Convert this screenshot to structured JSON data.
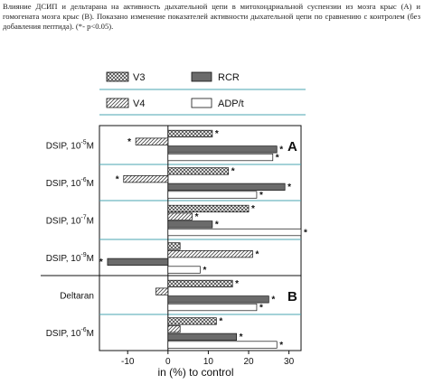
{
  "caption": {
    "text": "Влияние ДСИП и дельтарана на активность дыхательной цепи в митохондриальной суспензии из мозга крыс (А) и гомогената мозга крыс (В). Показано изменение показателей активности дыхательной цепи по сравнению с контролем (без добавления пептида).   (*- p<0.05)."
  },
  "chart_data": {
    "type": "bar",
    "orientation": "horizontal",
    "xlabel": "in (%) to control",
    "xlim": [
      -17,
      33
    ],
    "xticks": [
      -10,
      0,
      10,
      20,
      30
    ],
    "legend": {
      "placement": "top",
      "entries": [
        {
          "key": "V3",
          "label": "V3",
          "pattern": "crosshatch"
        },
        {
          "key": "RCR",
          "label": "RCR",
          "pattern": "solid-dark"
        },
        {
          "key": "V4",
          "label": "V4",
          "pattern": "diagonal"
        },
        {
          "key": "ADP_t",
          "label": "ADP/t",
          "pattern": "white"
        }
      ]
    },
    "series_order": [
      "V3",
      "V4",
      "RCR",
      "ADP_t"
    ],
    "colors": {
      "dark": "#6b6b6b",
      "hatch": "#555555",
      "teal_grid": "#4aa6b0",
      "frame": "#111111"
    },
    "panels": [
      {
        "label": "A",
        "groups": [
          {
            "name": "DSIP, 10",
            "sup": "-5",
            "unit": "M",
            "values": {
              "V3": 11,
              "V4": -8,
              "RCR": 27,
              "ADP_t": 26
            },
            "sig": {
              "V3": true,
              "V4": true,
              "RCR": true,
              "ADP_t": true
            }
          },
          {
            "name": "DSIP, 10",
            "sup": "-6",
            "unit": "M",
            "values": {
              "V3": 15,
              "V4": -11,
              "RCR": 29,
              "ADP_t": 22
            },
            "sig": {
              "V3": true,
              "V4": true,
              "RCR": true,
              "ADP_t": true
            }
          },
          {
            "name": "DSIP, 10",
            "sup": "-7",
            "unit": "M",
            "values": {
              "V3": 20,
              "V4": 6,
              "RCR": 11,
              "ADP_t": 33
            },
            "sig": {
              "V3": true,
              "V4": true,
              "RCR": true,
              "ADP_t": true
            }
          },
          {
            "name": "DSIP, 10",
            "sup": "-9",
            "unit": "M",
            "values": {
              "V3": 3,
              "V4": 21,
              "RCR": -15,
              "ADP_t": 8
            },
            "sig": {
              "V3": false,
              "V4": true,
              "RCR": true,
              "ADP_t": true
            }
          }
        ]
      },
      {
        "label": "B",
        "groups": [
          {
            "name": "Deltaran",
            "sup": "",
            "unit": "",
            "values": {
              "V3": 16,
              "V4": -3,
              "RCR": 25,
              "ADP_t": 22
            },
            "sig": {
              "V3": true,
              "V4": false,
              "RCR": true,
              "ADP_t": true
            }
          },
          {
            "name": "DSIP, 10",
            "sup": "-6",
            "unit": "M",
            "values": {
              "V3": 12,
              "V4": 3,
              "RCR": 17,
              "ADP_t": 27
            },
            "sig": {
              "V3": true,
              "V4": false,
              "RCR": true,
              "ADP_t": true
            }
          }
        ]
      }
    ]
  }
}
